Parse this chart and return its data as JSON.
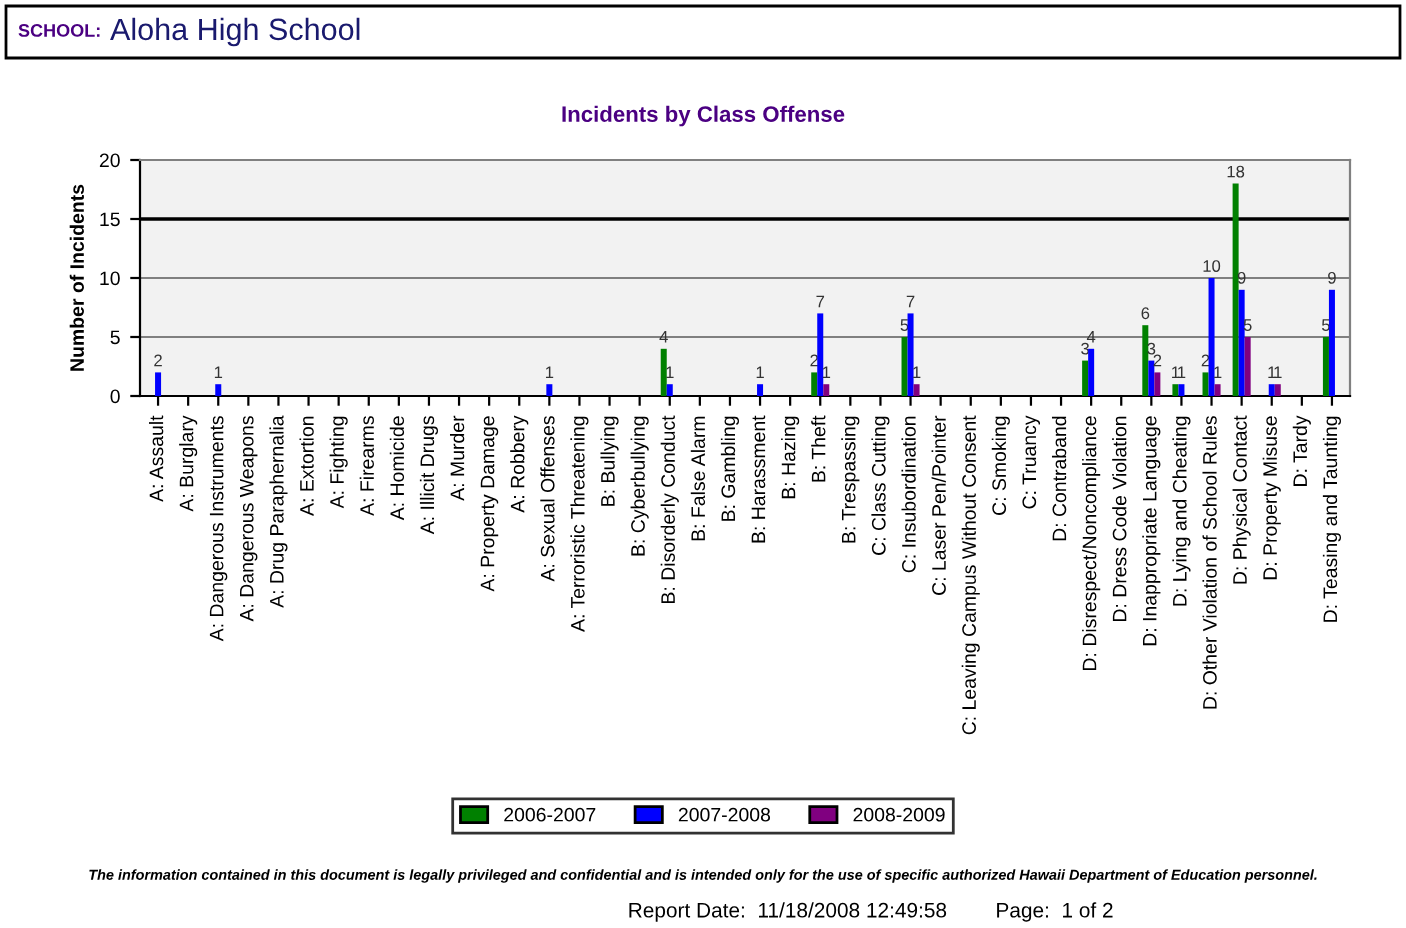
{
  "chart_data": {
    "type": "bar",
    "title": "Incidents by Class Offense",
    "ylabel": "Number of Incidents",
    "annotations": [
      "SCHOOL:",
      "Aloha High School",
      "The information contained in this document is legally privileged and confidential and is intended only for the use of specific authorized Hawaii Department of Education personnel.",
      "Report Date:  11/18/2008 12:49:58",
      "Page:  1 of 2"
    ],
    "categories": [
      "A: Assault",
      "A: Burglary",
      "A: Dangerous Instruments",
      "A: Dangerous Weapons",
      "A: Drug Paraphernalia",
      "A: Extortion",
      "A: Fighting",
      "A: Firearms",
      "A: Homicide",
      "A: Illicit Drugs",
      "A: Murder",
      "A: Property Damage",
      "A: Robbery",
      "A: Sexual Offenses",
      "A: Terroristic Threatening",
      "B: Bullying",
      "B: Cyberbullying",
      "B: Disorderly Conduct",
      "B: False Alarm",
      "B: Gambling",
      "B: Harassment",
      "B: Hazing",
      "B: Theft",
      "B: Trespassing",
      "C: Class Cutting",
      "C: Insubordination",
      "C: Laser Pen/Pointer",
      "C: Leaving Campus Without Consent",
      "C: Smoking",
      "C: Truancy",
      "D: Contraband",
      "D: Disrespect/Noncompliance",
      "D: Dress Code Violation",
      "D: Inappropriate Language",
      "D: Lying and Cheating",
      "D: Other Violation of School Rules",
      "D: Physical Contact",
      "D: Property Misuse",
      "D: Tardy",
      "D: Teasing and Taunting"
    ],
    "series": [
      {
        "name": "2006-2007",
        "color": "#008000",
        "values": [
          0,
          0,
          0,
          0,
          0,
          0,
          0,
          0,
          0,
          0,
          0,
          0,
          0,
          0,
          0,
          0,
          0,
          4,
          0,
          0,
          0,
          0,
          2,
          0,
          0,
          5,
          0,
          0,
          0,
          0,
          0,
          3,
          0,
          6,
          1,
          2,
          18,
          0,
          0,
          5
        ],
        "value_labels": [
          null,
          null,
          null,
          null,
          null,
          null,
          null,
          null,
          null,
          null,
          null,
          null,
          null,
          null,
          null,
          null,
          null,
          "4",
          null,
          null,
          null,
          null,
          "2",
          null,
          null,
          "5",
          null,
          null,
          null,
          null,
          null,
          "3",
          null,
          "6",
          "1",
          "2",
          "18",
          null,
          null,
          "5"
        ]
      },
      {
        "name": "2007-2008",
        "color": "#0000ff",
        "values": [
          2,
          0,
          1,
          0,
          0,
          0,
          0,
          0,
          0,
          0,
          0,
          0,
          0,
          1,
          0,
          0,
          0,
          1,
          0,
          0,
          1,
          0,
          7,
          0,
          0,
          7,
          0,
          0,
          0,
          0,
          0,
          4,
          0,
          3,
          1,
          10,
          9,
          1,
          0,
          9
        ],
        "value_labels": [
          "2",
          null,
          "1",
          null,
          null,
          null,
          null,
          null,
          null,
          null,
          null,
          null,
          null,
          "1",
          null,
          null,
          null,
          "1",
          null,
          null,
          "1",
          null,
          "7",
          null,
          null,
          "7",
          null,
          null,
          null,
          null,
          null,
          "4",
          null,
          "3",
          "1",
          "10",
          "9",
          "1",
          null,
          "9"
        ]
      },
      {
        "name": "2008-2009",
        "color": "#800080",
        "values": [
          0,
          0,
          0,
          0,
          0,
          0,
          0,
          0,
          0,
          0,
          0,
          0,
          0,
          0,
          0,
          0,
          0,
          0,
          0,
          0,
          0,
          0,
          1,
          0,
          0,
          1,
          0,
          0,
          0,
          0,
          0,
          0,
          0,
          2,
          0,
          1,
          5,
          1,
          0,
          0
        ],
        "value_labels": [
          null,
          null,
          null,
          null,
          null,
          null,
          null,
          null,
          null,
          null,
          null,
          null,
          null,
          null,
          null,
          null,
          null,
          null,
          null,
          null,
          null,
          null,
          "1",
          null,
          null,
          "1",
          null,
          null,
          null,
          null,
          null,
          null,
          null,
          "2",
          null,
          "1",
          "5",
          "1",
          null,
          null
        ]
      }
    ],
    "ylim": [
      0,
      20
    ],
    "yticks": [
      0,
      5,
      10,
      15,
      20
    ],
    "grid": "y",
    "ref_lines": [
      {
        "axis": "y",
        "value": 15,
        "color": "#000000"
      }
    ],
    "legend": "bottom"
  }
}
